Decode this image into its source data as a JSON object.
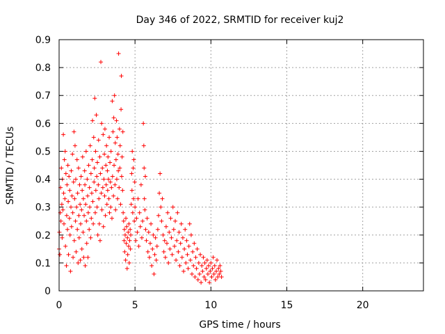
{
  "chart_data": {
    "type": "scatter",
    "title": "Day 346 of 2022, SRMTID for receiver kuj2",
    "xlabel": "GPS time / hours",
    "ylabel": "SRMTID / TECUs",
    "xlim": [
      0,
      24
    ],
    "ylim": [
      0,
      0.9
    ],
    "xticks": [
      0,
      5,
      10,
      15,
      20
    ],
    "yticks": [
      0,
      0.1,
      0.2,
      0.3,
      0.4,
      0.5,
      0.6,
      0.7,
      0.8,
      0.9
    ],
    "grid": true,
    "marker": "+",
    "color": "#ff0000",
    "series": [
      {
        "name": "SRMTID",
        "points": [
          [
            0.0,
            0.15
          ],
          [
            0.02,
            0.21
          ],
          [
            0.05,
            0.13
          ],
          [
            0.08,
            0.28
          ],
          [
            0.1,
            0.37
          ],
          [
            0.12,
            0.25
          ],
          [
            0.15,
            0.44
          ],
          [
            0.18,
            0.31
          ],
          [
            0.2,
            0.19
          ],
          [
            0.22,
            0.4
          ],
          [
            0.25,
            0.29
          ],
          [
            0.28,
            0.56
          ],
          [
            0.3,
            0.35
          ],
          [
            0.32,
            0.24
          ],
          [
            0.35,
            0.47
          ],
          [
            0.38,
            0.33
          ],
          [
            0.4,
            0.5
          ],
          [
            0.42,
            0.16
          ],
          [
            0.45,
            0.42
          ],
          [
            0.48,
            0.09
          ],
          [
            0.5,
            0.27
          ],
          [
            0.52,
            0.38
          ],
          [
            0.55,
            0.22
          ],
          [
            0.58,
            0.45
          ],
          [
            0.6,
            0.32
          ],
          [
            0.62,
            0.13
          ],
          [
            0.65,
            0.41
          ],
          [
            0.68,
            0.26
          ],
          [
            0.7,
            0.36
          ],
          [
            0.72,
            0.2
          ],
          [
            0.75,
            0.07
          ],
          [
            0.78,
            0.3
          ],
          [
            0.8,
            0.43
          ],
          [
            0.82,
            0.23
          ],
          [
            0.85,
            0.34
          ],
          [
            0.88,
            0.49
          ],
          [
            0.9,
            0.28
          ],
          [
            0.92,
            0.12
          ],
          [
            0.95,
            0.39
          ],
          [
            0.98,
            0.57
          ],
          [
            1.0,
            0.18
          ],
          [
            1.02,
            0.33
          ],
          [
            1.05,
            0.52
          ],
          [
            1.08,
            0.25
          ],
          [
            1.1,
            0.4
          ],
          [
            1.12,
            0.14
          ],
          [
            1.15,
            0.3
          ],
          [
            1.18,
            0.47
          ],
          [
            1.2,
            0.22
          ],
          [
            1.22,
            0.35
          ],
          [
            1.25,
            0.1
          ],
          [
            1.28,
            0.44
          ],
          [
            1.3,
            0.27
          ],
          [
            1.32,
            0.19
          ],
          [
            1.35,
            0.38
          ],
          [
            1.38,
            0.31
          ],
          [
            1.4,
            0.11
          ],
          [
            1.42,
            0.24
          ],
          [
            1.45,
            0.41
          ],
          [
            1.48,
            0.29
          ],
          [
            1.5,
            0.15
          ],
          [
            1.52,
            0.36
          ],
          [
            1.55,
            0.48
          ],
          [
            1.58,
            0.21
          ],
          [
            1.6,
            0.33
          ],
          [
            1.62,
            0.12
          ],
          [
            1.65,
            0.27
          ],
          [
            1.68,
            0.43
          ],
          [
            1.7,
            0.38
          ],
          [
            1.72,
            0.09
          ],
          [
            1.75,
            0.31
          ],
          [
            1.78,
            0.5
          ],
          [
            1.8,
            0.25
          ],
          [
            1.82,
            0.17
          ],
          [
            1.85,
            0.4
          ],
          [
            1.88,
            0.34
          ],
          [
            1.9,
            0.12
          ],
          [
            1.92,
            0.28
          ],
          [
            1.95,
            0.45
          ],
          [
            1.98,
            0.22
          ],
          [
            2.0,
            0.37
          ],
          [
            2.02,
            0.3
          ],
          [
            2.05,
            0.52
          ],
          [
            2.08,
            0.19
          ],
          [
            2.1,
            0.42
          ],
          [
            2.12,
            0.26
          ],
          [
            2.15,
            0.35
          ],
          [
            2.18,
            0.47
          ],
          [
            2.2,
            0.61
          ],
          [
            2.22,
            0.32
          ],
          [
            2.25,
            0.24
          ],
          [
            2.28,
            0.55
          ],
          [
            2.3,
            0.39
          ],
          [
            2.32,
            0.44
          ],
          [
            2.35,
            0.69
          ],
          [
            2.38,
            0.28
          ],
          [
            2.4,
            0.5
          ],
          [
            2.42,
            0.36
          ],
          [
            2.45,
            0.63
          ],
          [
            2.48,
            0.41
          ],
          [
            2.5,
            0.3
          ],
          [
            2.52,
            0.46
          ],
          [
            2.55,
            0.2
          ],
          [
            2.58,
            0.38
          ],
          [
            2.6,
            0.54
          ],
          [
            2.62,
            0.33
          ],
          [
            2.65,
            0.24
          ],
          [
            2.68,
            0.48
          ],
          [
            2.7,
            0.18
          ],
          [
            2.72,
            0.42
          ],
          [
            2.75,
            0.82
          ],
          [
            2.78,
            0.35
          ],
          [
            2.8,
            0.6
          ],
          [
            2.82,
            0.29
          ],
          [
            2.85,
            0.44
          ],
          [
            2.88,
            0.37
          ],
          [
            2.9,
            0.56
          ],
          [
            2.92,
            0.23
          ],
          [
            2.95,
            0.4
          ],
          [
            2.98,
            0.49
          ],
          [
            3.0,
            0.34
          ],
          [
            3.02,
            0.58
          ],
          [
            3.05,
            0.27
          ],
          [
            3.08,
            0.45
          ],
          [
            3.1,
            0.38
          ],
          [
            3.12,
            0.52
          ],
          [
            3.15,
            0.31
          ],
          [
            3.18,
            0.43
          ],
          [
            3.2,
            0.36
          ],
          [
            3.22,
            0.48
          ],
          [
            3.25,
            0.4
          ],
          [
            3.28,
            0.33
          ],
          [
            3.3,
            0.55
          ],
          [
            3.32,
            0.28
          ],
          [
            3.35,
            0.46
          ],
          [
            3.38,
            0.39
          ],
          [
            3.4,
            0.3
          ],
          [
            3.42,
            0.5
          ],
          [
            3.45,
            0.37
          ],
          [
            3.48,
            0.26
          ],
          [
            3.5,
            0.68
          ],
          [
            3.52,
            0.41
          ],
          [
            3.55,
            0.57
          ],
          [
            3.58,
            0.34
          ],
          [
            3.6,
            0.62
          ],
          [
            3.62,
            0.45
          ],
          [
            3.65,
            0.7
          ],
          [
            3.68,
            0.38
          ],
          [
            3.7,
            0.53
          ],
          [
            3.72,
            0.29
          ],
          [
            3.75,
            0.47
          ],
          [
            3.78,
            0.61
          ],
          [
            3.8,
            0.4
          ],
          [
            3.82,
            0.55
          ],
          [
            3.85,
            0.33
          ],
          [
            3.88,
            0.49
          ],
          [
            3.9,
            0.43
          ],
          [
            3.92,
            0.85
          ],
          [
            3.95,
            0.37
          ],
          [
            3.98,
            0.58
          ],
          [
            4.0,
            0.44
          ],
          [
            4.02,
            0.52
          ],
          [
            4.05,
            0.31
          ],
          [
            4.08,
            0.65
          ],
          [
            4.1,
            0.77
          ],
          [
            4.12,
            0.41
          ],
          [
            4.15,
            0.48
          ],
          [
            4.18,
            0.36
          ],
          [
            4.2,
            0.57
          ],
          [
            4.22,
            0.28
          ],
          [
            4.25,
            0.25
          ],
          [
            4.28,
            0.18
          ],
          [
            4.3,
            0.22
          ],
          [
            4.32,
            0.14
          ],
          [
            4.35,
            0.2
          ],
          [
            4.38,
            0.11
          ],
          [
            4.4,
            0.26
          ],
          [
            4.42,
            0.17
          ],
          [
            4.45,
            0.23
          ],
          [
            4.48,
            0.08
          ],
          [
            4.5,
            0.19
          ],
          [
            4.52,
            0.13
          ],
          [
            4.55,
            0.21
          ],
          [
            4.58,
            0.16
          ],
          [
            4.6,
            0.24
          ],
          [
            4.62,
            0.1
          ],
          [
            4.65,
            0.18
          ],
          [
            4.68,
            0.22
          ],
          [
            4.7,
            0.15
          ],
          [
            4.72,
            0.2
          ],
          [
            4.75,
            0.31
          ],
          [
            4.78,
            0.42
          ],
          [
            4.8,
            0.36
          ],
          [
            4.82,
            0.5
          ],
          [
            4.85,
            0.28
          ],
          [
            4.88,
            0.44
          ],
          [
            4.9,
            0.33
          ],
          [
            4.92,
            0.47
          ],
          [
            4.95,
            0.25
          ],
          [
            4.98,
            0.39
          ],
          [
            5.0,
            0.3
          ],
          [
            5.05,
            0.18
          ],
          [
            5.1,
            0.26
          ],
          [
            5.15,
            0.21
          ],
          [
            5.2,
            0.33
          ],
          [
            5.25,
            0.16
          ],
          [
            5.3,
            0.28
          ],
          [
            5.35,
            0.23
          ],
          [
            5.4,
            0.38
          ],
          [
            5.45,
            0.19
          ],
          [
            5.5,
            0.25
          ],
          [
            5.55,
            0.6
          ],
          [
            5.58,
            0.52
          ],
          [
            5.6,
            0.44
          ],
          [
            5.62,
            0.33
          ],
          [
            5.65,
            0.29
          ],
          [
            5.68,
            0.41
          ],
          [
            5.7,
            0.22
          ],
          [
            5.75,
            0.18
          ],
          [
            5.8,
            0.26
          ],
          [
            5.85,
            0.14
          ],
          [
            5.9,
            0.21
          ],
          [
            5.95,
            0.12
          ],
          [
            6.0,
            0.17
          ],
          [
            6.05,
            0.24
          ],
          [
            6.1,
            0.09
          ],
          [
            6.15,
            0.15
          ],
          [
            6.2,
            0.2
          ],
          [
            6.25,
            0.06
          ],
          [
            6.3,
            0.13
          ],
          [
            6.35,
            0.19
          ],
          [
            6.4,
            0.11
          ],
          [
            6.45,
            0.16
          ],
          [
            6.5,
            0.22
          ],
          [
            6.55,
            0.27
          ],
          [
            6.6,
            0.35
          ],
          [
            6.65,
            0.42
          ],
          [
            6.7,
            0.3
          ],
          [
            6.75,
            0.25
          ],
          [
            6.8,
            0.33
          ],
          [
            6.85,
            0.2
          ],
          [
            6.9,
            0.14
          ],
          [
            6.95,
            0.18
          ],
          [
            7.0,
            0.12
          ],
          [
            7.05,
            0.23
          ],
          [
            7.1,
            0.17
          ],
          [
            7.15,
            0.28
          ],
          [
            7.2,
            0.1
          ],
          [
            7.25,
            0.21
          ],
          [
            7.3,
            0.15
          ],
          [
            7.35,
            0.26
          ],
          [
            7.4,
            0.19
          ],
          [
            7.45,
            0.13
          ],
          [
            7.5,
            0.3
          ],
          [
            7.55,
            0.22
          ],
          [
            7.6,
            0.16
          ],
          [
            7.65,
            0.25
          ],
          [
            7.7,
            0.11
          ],
          [
            7.75,
            0.18
          ],
          [
            7.8,
            0.28
          ],
          [
            7.85,
            0.14
          ],
          [
            7.9,
            0.21
          ],
          [
            7.95,
            0.09
          ],
          [
            8.0,
            0.17
          ],
          [
            8.05,
            0.24
          ],
          [
            8.1,
            0.12
          ],
          [
            8.15,
            0.19
          ],
          [
            8.2,
            0.07
          ],
          [
            8.25,
            0.15
          ],
          [
            8.3,
            0.22
          ],
          [
            8.35,
            0.1
          ],
          [
            8.4,
            0.18
          ],
          [
            8.45,
            0.13
          ],
          [
            8.5,
            0.08
          ],
          [
            8.55,
            0.16
          ],
          [
            8.6,
            0.24
          ],
          [
            8.65,
            0.11
          ],
          [
            8.7,
            0.2
          ],
          [
            8.75,
            0.06
          ],
          [
            8.8,
            0.14
          ],
          [
            8.85,
            0.09
          ],
          [
            8.9,
            0.17
          ],
          [
            8.95,
            0.05
          ],
          [
            9.0,
            0.12
          ],
          [
            9.05,
            0.08
          ],
          [
            9.1,
            0.15
          ],
          [
            9.15,
            0.04
          ],
          [
            9.2,
            0.1
          ],
          [
            9.25,
            0.06
          ],
          [
            9.3,
            0.13
          ],
          [
            9.35,
            0.03
          ],
          [
            9.4,
            0.09
          ],
          [
            9.45,
            0.07
          ],
          [
            9.5,
            0.12
          ],
          [
            9.55,
            0.05
          ],
          [
            9.6,
            0.1
          ],
          [
            9.65,
            0.04
          ],
          [
            9.7,
            0.08
          ],
          [
            9.75,
            0.11
          ],
          [
            9.8,
            0.06
          ],
          [
            9.85,
            0.09
          ],
          [
            9.9,
            0.03
          ],
          [
            9.95,
            0.07
          ],
          [
            10.0,
            0.1
          ],
          [
            10.05,
            0.05
          ],
          [
            10.1,
            0.08
          ],
          [
            10.15,
            0.12
          ],
          [
            10.2,
            0.06
          ],
          [
            10.25,
            0.09
          ],
          [
            10.3,
            0.04
          ],
          [
            10.35,
            0.07
          ],
          [
            10.4,
            0.11
          ],
          [
            10.45,
            0.05
          ],
          [
            10.5,
            0.08
          ],
          [
            10.55,
            0.06
          ],
          [
            10.6,
            0.09
          ],
          [
            10.65,
            0.07
          ],
          [
            10.7,
            0.05
          ]
        ]
      }
    ]
  }
}
